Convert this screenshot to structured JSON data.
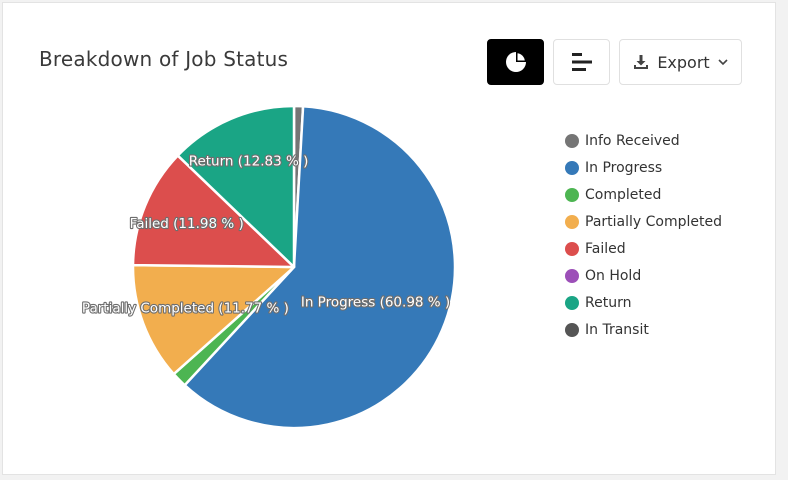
{
  "header": {
    "title": "Breakdown of Job Status",
    "pie_button_icon": "pie-chart-icon",
    "bar_button_icon": "bar-chart-icon",
    "export_label": "Export",
    "export_icon": "download-icon",
    "export_caret_icon": "chevron-down-icon"
  },
  "chart_data": {
    "type": "pie",
    "title": "Breakdown of Job Status",
    "slices": [
      {
        "name": "Info Received",
        "value": 0.9,
        "color": "#757575",
        "label": ""
      },
      {
        "name": "In Progress",
        "value": 60.98,
        "color": "#3579b8",
        "label": "In Progress (60.98 % )"
      },
      {
        "name": "Completed",
        "value": 1.54,
        "color": "#4db552",
        "label": ""
      },
      {
        "name": "Partially Completed",
        "value": 11.77,
        "color": "#f2ae4e",
        "label": "Partially Completed (11.77 % )"
      },
      {
        "name": "Failed",
        "value": 11.98,
        "color": "#dc4e4d",
        "label": "Failed (11.98 % )"
      },
      {
        "name": "On Hold",
        "value": 0,
        "color": "#9c4fb8",
        "label": ""
      },
      {
        "name": "Return",
        "value": 12.83,
        "color": "#1aa585",
        "label": "Return (12.83 % )"
      },
      {
        "name": "In Transit",
        "value": 0,
        "color": "#555555",
        "label": ""
      }
    ],
    "legend_placement": "right"
  }
}
